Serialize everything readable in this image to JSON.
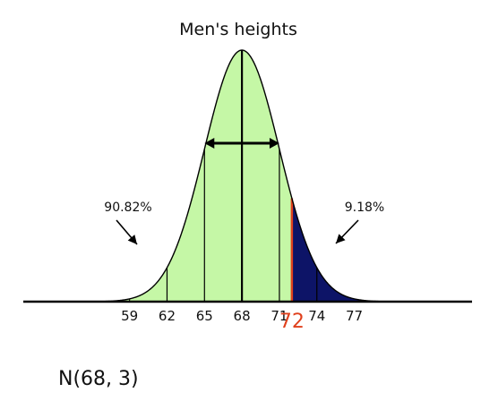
{
  "chart_data": {
    "type": "area",
    "title": "Men's heights",
    "distribution": {
      "mean": 68,
      "sd": 3
    },
    "notation": "N(68, 3)",
    "xlim": [
      53.5,
      86
    ],
    "ticks": [
      59,
      62,
      65,
      68,
      71,
      74,
      77
    ],
    "highlight_tick": {
      "value": 72,
      "label": "72"
    },
    "vertical_lines": [
      62,
      65,
      68,
      71,
      74
    ],
    "sd_arrow": {
      "from": 65,
      "to": 71
    },
    "regions": [
      {
        "name": "below-72",
        "from": 53.5,
        "to": 72,
        "color": "#c5f7a6",
        "percent_label": "90.82%"
      },
      {
        "name": "above-72",
        "from": 72,
        "to": 86,
        "color": "#0d1467",
        "percent_label": "9.18%"
      }
    ],
    "cutoff_line_color": "#e0401c"
  }
}
